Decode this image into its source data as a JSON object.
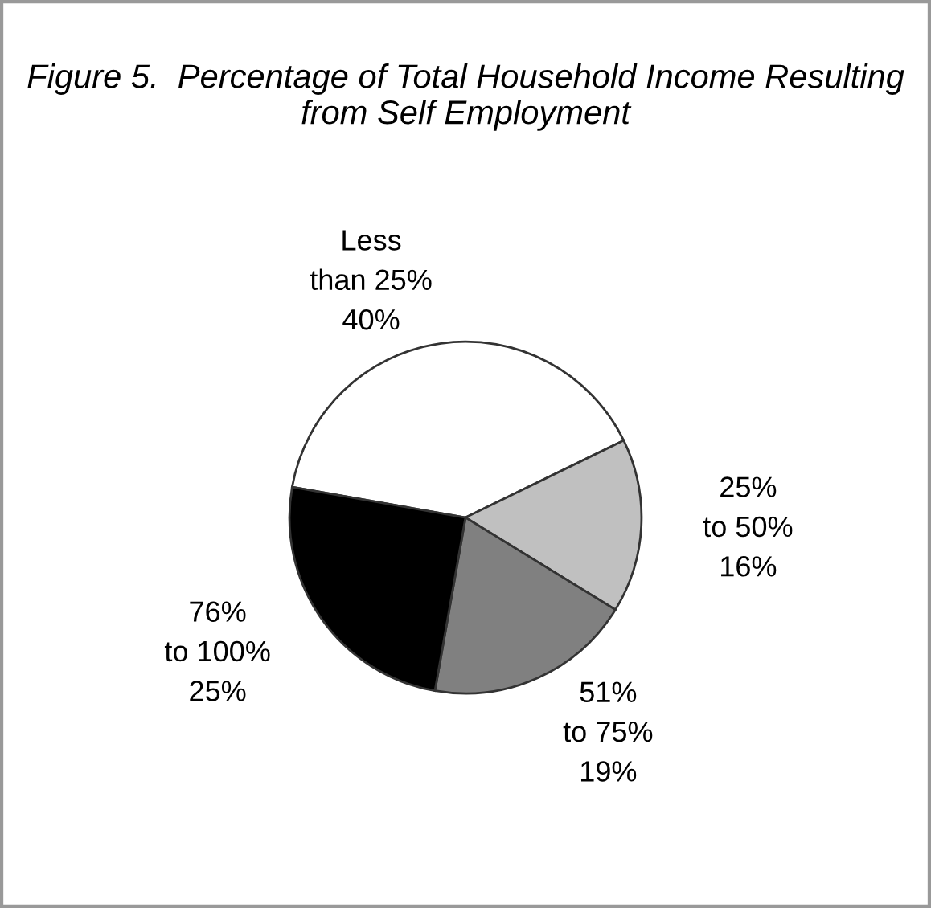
{
  "chart_data": {
    "type": "pie",
    "title": "Figure 5.  Percentage of Total Household Income Resulting from Self Employment",
    "categories": [
      "Less than 25%",
      "25% to 50%",
      "51% to 75%",
      "76% to 100%"
    ],
    "values": [
      40,
      16,
      19,
      25
    ],
    "colors": [
      "#ffffff",
      "#c0c0c0",
      "#808080",
      "#000000"
    ],
    "value_labels": [
      "40%",
      "16%",
      "19%",
      "25%"
    ],
    "legend": false
  }
}
